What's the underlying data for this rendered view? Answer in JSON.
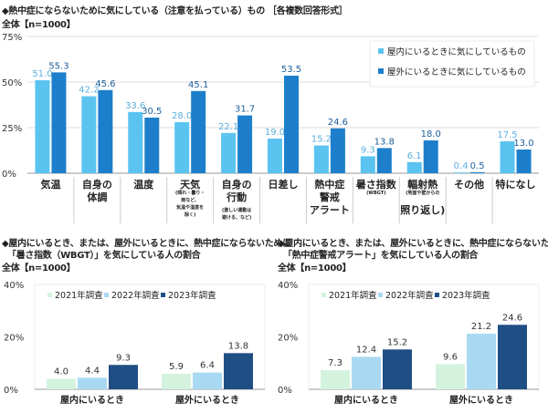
{
  "chart_data": [
    {
      "type": "bar",
      "title": "◆熱中症にならないために気にしている（注意を払っている）もの ［各複数回答形式］",
      "subtitle": "全体【n=1000】",
      "ylim": [
        0,
        75
      ],
      "yticks": [
        "0%",
        "25%",
        "50%",
        "75%"
      ],
      "grid": true,
      "legend": "top-right",
      "categories": [
        [
          "気温"
        ],
        [
          "自身の",
          "体調"
        ],
        [
          "温度"
        ],
        [
          "天気",
          "(晴れ・曇り・",
          "雨など、",
          "気温や湿度を",
          "除く)"
        ],
        [
          "自身の",
          "行動",
          "(激しい運動は",
          "避ける、など)"
        ],
        [
          "日差し"
        ],
        [
          "熱中症",
          "警戒",
          "アラート"
        ],
        [
          "暑さ指数",
          "(WBGT)"
        ],
        [
          "輻射熱",
          "(地面や壁からの",
          "照り返し)"
        ],
        [
          "その他"
        ],
        [
          "特になし"
        ]
      ],
      "series": [
        {
          "name": "屋内にいるときに気にしているもの",
          "color": "#5bc3f0",
          "values": [
            51.0,
            42.2,
            33.6,
            28.0,
            22.1,
            19.0,
            15.2,
            9.3,
            6.1,
            0.4,
            17.5
          ]
        },
        {
          "name": "屋外にいるときに気にしているもの",
          "color": "#1d7fcb",
          "values": [
            55.3,
            45.6,
            30.5,
            45.1,
            31.7,
            53.5,
            24.6,
            13.8,
            18.0,
            0.5,
            13.0
          ]
        }
      ]
    },
    {
      "type": "bar",
      "title": "◆屋内にいるとき、または、屋外にいるときに、熱中症にならないために",
      "title2": "「暑さ指数（WBGT）」を気にしている人の割合",
      "subtitle": "全体【n=1000】",
      "ylim": [
        0,
        40
      ],
      "yticks": [
        "0%",
        "20%",
        "40%"
      ],
      "legend": "top",
      "categories": [
        "屋内にいるとき",
        "屋外にいるとき"
      ],
      "series": [
        {
          "name": "2021年調査",
          "color": "#d4f3de",
          "values": [
            4.0,
            5.9
          ]
        },
        {
          "name": "2022年調査",
          "color": "#a9d9f2",
          "values": [
            4.4,
            6.4
          ]
        },
        {
          "name": "2023年調査",
          "color": "#1f4e85",
          "values": [
            9.3,
            13.8
          ]
        }
      ]
    },
    {
      "type": "bar",
      "title": "◆屋内にいるとき、または、屋外にいるときに、熱中症にならないために",
      "title2": "「熱中症警戒アラート」を気にしている人の割合",
      "subtitle": "全体【n=1000】",
      "ylim": [
        0,
        40
      ],
      "yticks": [
        "0%",
        "20%",
        "40%"
      ],
      "legend": "top",
      "categories": [
        "屋内にいるとき",
        "屋外にいるとき"
      ],
      "series": [
        {
          "name": "2021年調査",
          "color": "#d4f3de",
          "values": [
            7.3,
            9.6
          ]
        },
        {
          "name": "2022年調査",
          "color": "#a9d9f2",
          "values": [
            12.4,
            21.2
          ]
        },
        {
          "name": "2023年調査",
          "color": "#1f4e85",
          "values": [
            15.2,
            24.6
          ]
        }
      ]
    }
  ]
}
